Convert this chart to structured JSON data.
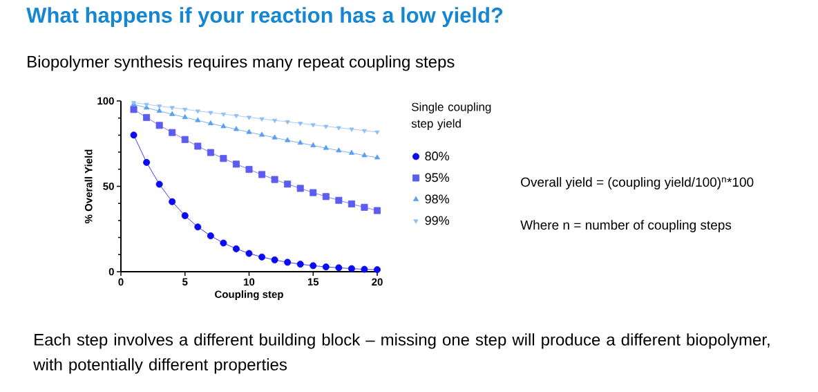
{
  "chart_data": {
    "type": "line",
    "title": "What happens if your reaction has a low yield?",
    "subtitle": "Biopolymer synthesis requires many repeat coupling steps",
    "xlabel": "Coupling step",
    "ylabel": "% Overall Yield",
    "legend_title": "Single coupling step yield",
    "x": [
      1,
      2,
      3,
      4,
      5,
      6,
      7,
      8,
      9,
      10,
      11,
      12,
      13,
      14,
      15,
      16,
      17,
      18,
      19,
      20
    ],
    "series": [
      {
        "name": "80%",
        "color": "#0a0af5",
        "marker": "circle",
        "values": [
          80,
          64,
          51.2,
          41,
          32.8,
          26.2,
          21,
          16.8,
          13.4,
          10.7,
          8.6,
          6.9,
          5.5,
          4.4,
          3.5,
          2.8,
          2.3,
          1.8,
          1.4,
          1.2
        ]
      },
      {
        "name": "95%",
        "color": "#5c5cf0",
        "marker": "square",
        "values": [
          95,
          90.3,
          85.7,
          81.5,
          77.4,
          73.5,
          69.8,
          66.3,
          63,
          59.9,
          56.9,
          54,
          51.3,
          48.8,
          46.3,
          44,
          41.8,
          39.7,
          37.7,
          35.8
        ]
      },
      {
        "name": "98%",
        "color": "#5aa0f0",
        "marker": "triangle",
        "values": [
          98,
          96,
          94.1,
          92.2,
          90.4,
          88.6,
          86.8,
          85.1,
          83.4,
          81.7,
          80.1,
          78.5,
          76.9,
          75.4,
          73.9,
          72.4,
          70.9,
          69.5,
          68.1,
          66.8
        ]
      },
      {
        "name": "99%",
        "color": "#90bef8",
        "marker": "triangle_down",
        "values": [
          99,
          98,
          97,
          96.1,
          95.1,
          94.1,
          93.2,
          92.3,
          91.4,
          90.4,
          89.5,
          88.6,
          87.8,
          86.9,
          86,
          85.1,
          84.3,
          83.5,
          82.6,
          81.8
        ]
      }
    ],
    "xlim": [
      0,
      20
    ],
    "xticks": [
      0,
      5,
      10,
      15,
      20
    ],
    "ylim": [
      0,
      100
    ],
    "yticks": [
      0,
      50,
      100
    ],
    "grid": false,
    "legend": "right",
    "line_style": "solid",
    "annotations": [
      "Overall yield = (coupling yield/100)$^{n}$*100",
      "Where n = number of coupling steps",
      "Each step involves a different building block – missing one step will produce a different biopolymer, with potentially different properties"
    ]
  }
}
